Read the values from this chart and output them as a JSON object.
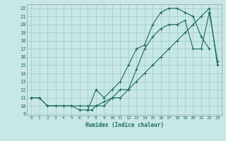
{
  "xlabel": "Humidex (Indice chaleur)",
  "bg_color": "#c8e8e8",
  "grid_color": "#a0c8c8",
  "line_color": "#1a6b5a",
  "xlim": [
    -0.5,
    23.5
  ],
  "ylim": [
    8.8,
    22.5
  ],
  "xticks": [
    0,
    1,
    2,
    3,
    4,
    5,
    6,
    7,
    8,
    9,
    10,
    11,
    12,
    13,
    14,
    15,
    16,
    17,
    18,
    19,
    20,
    21,
    22,
    23
  ],
  "yticks": [
    9,
    10,
    11,
    12,
    13,
    14,
    15,
    16,
    17,
    18,
    19,
    20,
    21,
    22
  ],
  "line1_x": [
    0,
    1,
    2,
    3,
    4,
    5,
    6,
    7,
    8,
    9,
    10,
    11,
    12,
    13,
    14,
    15,
    16,
    17,
    18,
    19,
    20,
    21,
    22,
    23
  ],
  "line1_y": [
    11,
    11,
    10,
    10,
    10,
    10,
    10,
    10,
    10,
    10,
    11,
    11,
    12,
    13,
    14,
    15,
    16,
    17,
    18,
    19,
    20,
    21,
    22,
    15
  ],
  "line2_x": [
    0,
    1,
    2,
    3,
    4,
    5,
    6,
    7,
    7.5,
    8,
    9,
    10,
    11,
    12,
    13,
    14,
    15,
    16,
    17,
    18,
    19,
    20,
    21,
    22,
    23
  ],
  "line2_y": [
    11,
    11,
    10,
    10,
    10,
    10,
    9.5,
    9.5,
    9.5,
    10,
    10.5,
    11,
    12,
    12,
    14.5,
    17,
    18.5,
    19.5,
    20,
    20,
    20.5,
    17,
    17,
    21.5,
    15.5
  ],
  "line3_x": [
    7,
    8,
    9,
    10,
    11,
    12,
    13,
    14,
    15,
    16,
    17,
    18,
    19,
    20,
    21,
    22
  ],
  "line3_y": [
    9.5,
    12,
    11,
    12,
    13,
    15,
    17,
    17.5,
    20,
    21.5,
    22,
    22,
    21.5,
    21,
    18.5,
    17
  ]
}
